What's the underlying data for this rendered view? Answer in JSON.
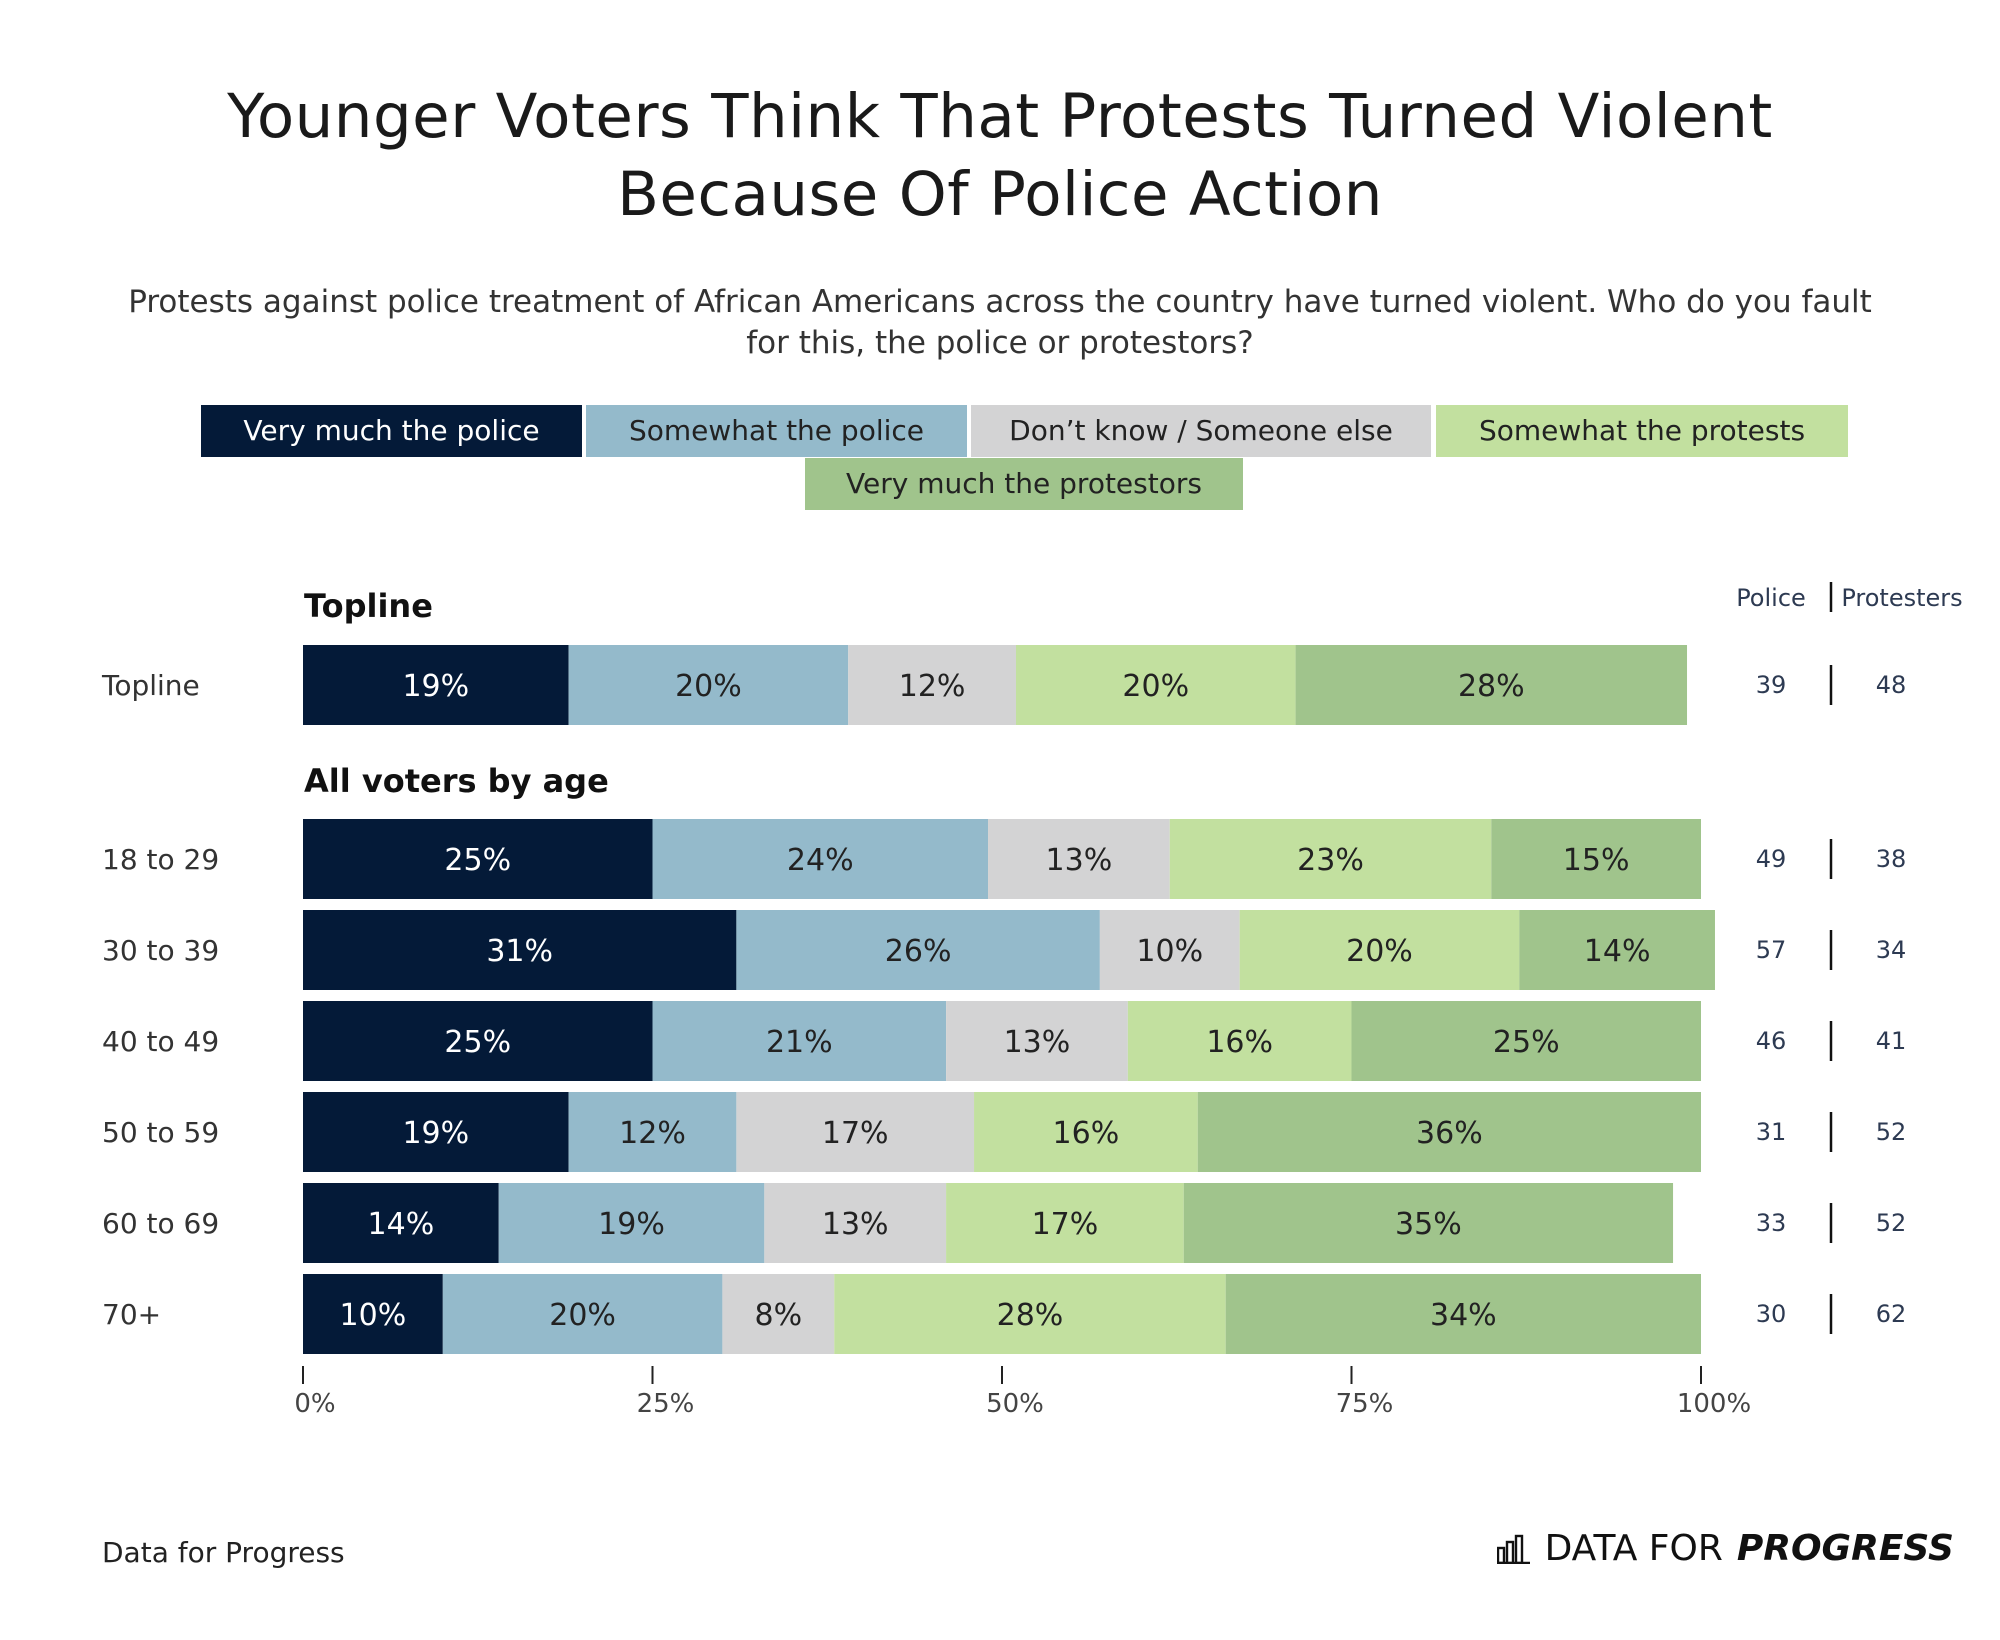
{
  "title_line1": "Younger Voters Think That Protests Turned Violent",
  "title_line2": "Because Of Police Action",
  "subtitle_line1": "Protests against police treatment of African Americans across the country have turned violent. Who do you fault",
  "subtitle_line2": "for this, the police or protestors?",
  "colors": {
    "very_police": "#041a38",
    "somewhat_police": "#94bacb",
    "dont_know": "#d3d3d4",
    "somewhat_protests": "#c2e09f",
    "very_protestors": "#a0c48c"
  },
  "legend": [
    {
      "label": "Very much the police",
      "color": "#041a38",
      "text_color": "#ffffff"
    },
    {
      "label": "Somewhat the police",
      "color": "#94bacb",
      "text_color": "#222222"
    },
    {
      "label": "Don’t know / Someone else",
      "color": "#d3d3d4",
      "text_color": "#222222"
    },
    {
      "label": "Somewhat the protests",
      "color": "#c2e09f",
      "text_color": "#222222"
    },
    {
      "label": "Very much the protestors",
      "color": "#a0c48c",
      "text_color": "#222222"
    }
  ],
  "net_headers": {
    "police": "Police",
    "protesters": "Protesters"
  },
  "footer_source": "Data for Progress",
  "brand": {
    "text_plain": "DATA FOR",
    "text_bold": "PROGRESS"
  },
  "chart_data": {
    "type": "bar",
    "orientation": "horizontal",
    "stacked": true,
    "xlabel": "",
    "ylabel": "",
    "xlim": [
      0,
      100
    ],
    "x_ticks": [
      "0%",
      "25%",
      "50%",
      "75%",
      "100%"
    ],
    "series_names": [
      "Very much the police",
      "Somewhat the police",
      "Don’t know / Someone else",
      "Somewhat the protests",
      "Very much the protestors"
    ],
    "groups": [
      {
        "header": "Topline",
        "rows": [
          {
            "label": "Topline",
            "values": [
              19,
              20,
              12,
              20,
              28
            ],
            "police": 39,
            "protesters": 48
          }
        ]
      },
      {
        "header": "All voters by age",
        "rows": [
          {
            "label": "18 to 29",
            "values": [
              25,
              24,
              13,
              23,
              15
            ],
            "police": 49,
            "protesters": 38
          },
          {
            "label": "30 to 39",
            "values": [
              31,
              26,
              10,
              20,
              14
            ],
            "police": 57,
            "protesters": 34
          },
          {
            "label": "40 to 49",
            "values": [
              25,
              21,
              13,
              16,
              25
            ],
            "police": 46,
            "protesters": 41
          },
          {
            "label": "50 to 59",
            "values": [
              19,
              12,
              17,
              16,
              36
            ],
            "police": 31,
            "protesters": 52
          },
          {
            "label": "60 to 69",
            "values": [
              14,
              19,
              13,
              17,
              35
            ],
            "police": 33,
            "protesters": 52
          },
          {
            "label": "70+",
            "values": [
              10,
              20,
              8,
              28,
              34
            ],
            "police": 30,
            "protesters": 62
          }
        ]
      }
    ]
  }
}
